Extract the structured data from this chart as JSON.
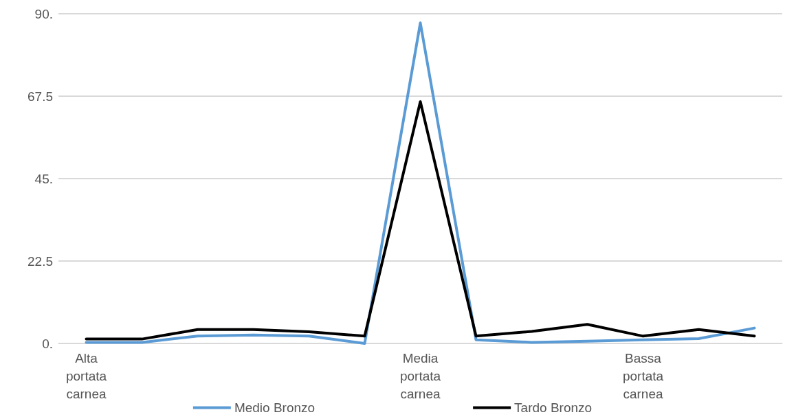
{
  "chart_data": {
    "type": "line",
    "categories": [
      "Alta portata carnea",
      null,
      null,
      null,
      null,
      null,
      "Media portata carnea",
      null,
      null,
      null,
      "Bassa portata carnea",
      null,
      null
    ],
    "series": [
      {
        "name": "Medio Bronzo",
        "color": "#5b9bd5",
        "values": [
          0.3,
          0.3,
          2,
          2.3,
          2,
          0,
          87.5,
          1,
          0.3,
          0.6,
          1,
          1.3,
          4.2
        ]
      },
      {
        "name": "Tardo Bronzo",
        "color": "#000000",
        "values": [
          1.2,
          1.2,
          3.8,
          3.8,
          3.2,
          2,
          66,
          2,
          3.3,
          5.2,
          2,
          3.8,
          2
        ]
      }
    ],
    "ylim": [
      0,
      90
    ],
    "yticks": [
      {
        "value": 0,
        "label": "0."
      },
      {
        "value": 22.5,
        "label": "22.5"
      },
      {
        "value": 45,
        "label": "45."
      },
      {
        "value": 67.5,
        "label": "67.5"
      },
      {
        "value": 90,
        "label": "90."
      }
    ],
    "grid": "y",
    "legend": "bottom",
    "marker": "none",
    "line_style": "solid"
  }
}
